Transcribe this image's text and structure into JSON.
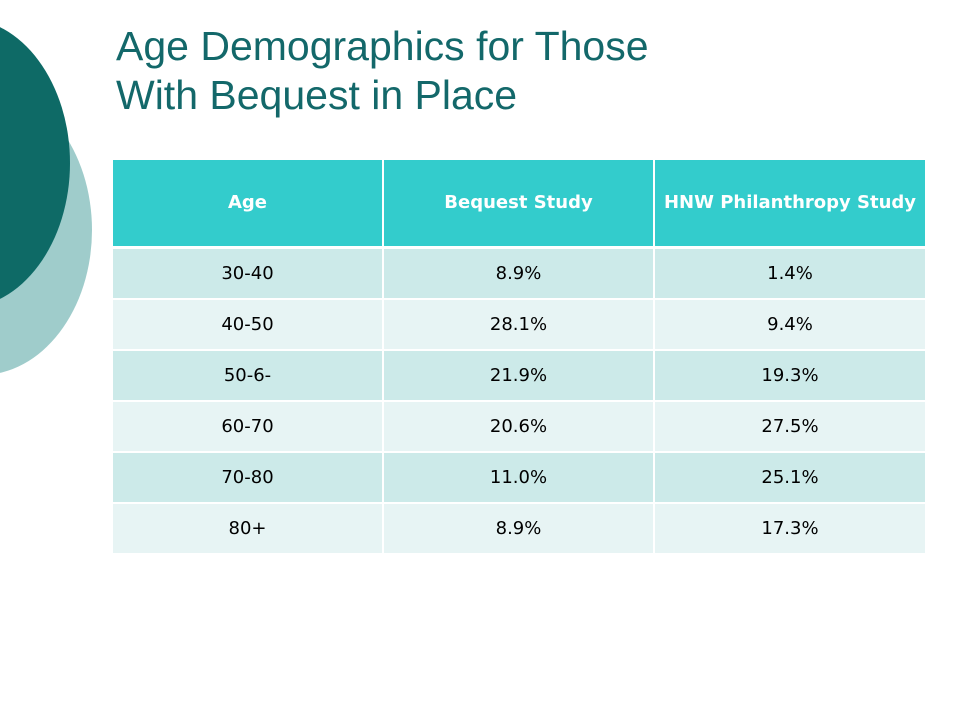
{
  "title": {
    "line1": "Age Demographics for Those",
    "line2": "With Bequest in Place"
  },
  "table": {
    "headers": [
      "Age",
      "Bequest Study",
      "HNW Philanthropy Study"
    ],
    "rows": [
      [
        "30-40",
        "8.9%",
        "1.4%"
      ],
      [
        "40-50",
        "28.1%",
        "9.4%"
      ],
      [
        "50-6-",
        "21.9%",
        "19.3%"
      ],
      [
        "60-70",
        "20.6%",
        "27.5%"
      ],
      [
        "70-80",
        "11.0%",
        "25.1%"
      ],
      [
        "80+",
        "8.9%",
        "17.3%"
      ]
    ]
  },
  "colors": {
    "title": "#13686a",
    "header_bg": "#33cccc",
    "row_odd": "#cceae9",
    "row_even": "#e7f4f4",
    "accent_dark": "#0e6a66",
    "accent_light": "#9fcccb"
  }
}
